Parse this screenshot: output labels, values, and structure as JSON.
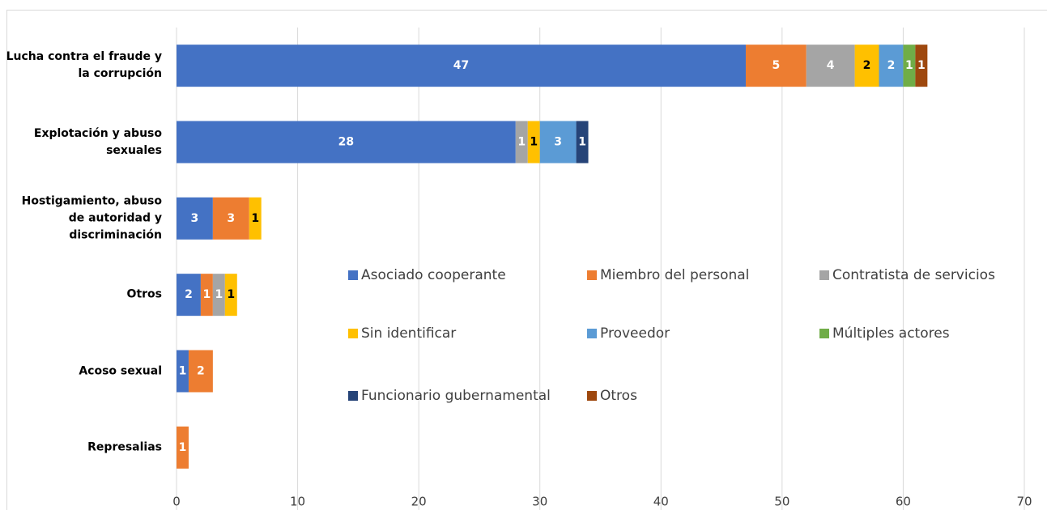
{
  "chart_data": {
    "type": "stacked_barh",
    "categories": [
      "Lucha contra el fraude y la corrupción",
      "Explotación y abuso sexuales",
      "Hostigamiento, abuso de autoridad y discriminación",
      "Otros",
      "Acoso sexual",
      "Represalias"
    ],
    "series": [
      {
        "name": "Asociado cooperante",
        "color": "#4472c4",
        "values": [
          47,
          28,
          3,
          2,
          1,
          null
        ]
      },
      {
        "name": "Miembro del personal",
        "color": "#ed7d31",
        "values": [
          5,
          null,
          3,
          1,
          2,
          1
        ]
      },
      {
        "name": "Contratista de servicios",
        "color": "#a5a5a5",
        "values": [
          4,
          1,
          null,
          1,
          null,
          null
        ]
      },
      {
        "name": "Sin identificar",
        "color": "#ffc000",
        "values": [
          2,
          1,
          1,
          1,
          null,
          null
        ]
      },
      {
        "name": "Proveedor",
        "color": "#5b9bd5",
        "values": [
          2,
          3,
          null,
          null,
          null,
          null
        ]
      },
      {
        "name": "Múltiples actores",
        "color": "#70ad47",
        "values": [
          1,
          null,
          null,
          null,
          null,
          null
        ]
      },
      {
        "name": "Funcionario gubernamental",
        "color": "#264478",
        "values": [
          null,
          1,
          null,
          null,
          null,
          null
        ]
      },
      {
        "name": "Otros",
        "color": "#9e480e",
        "values": [
          1,
          null,
          null,
          null,
          null,
          null
        ]
      }
    ],
    "xlim": [
      0,
      70
    ],
    "xticks": [
      0,
      10,
      20,
      30,
      40,
      50,
      60,
      70
    ],
    "grid": true
  }
}
